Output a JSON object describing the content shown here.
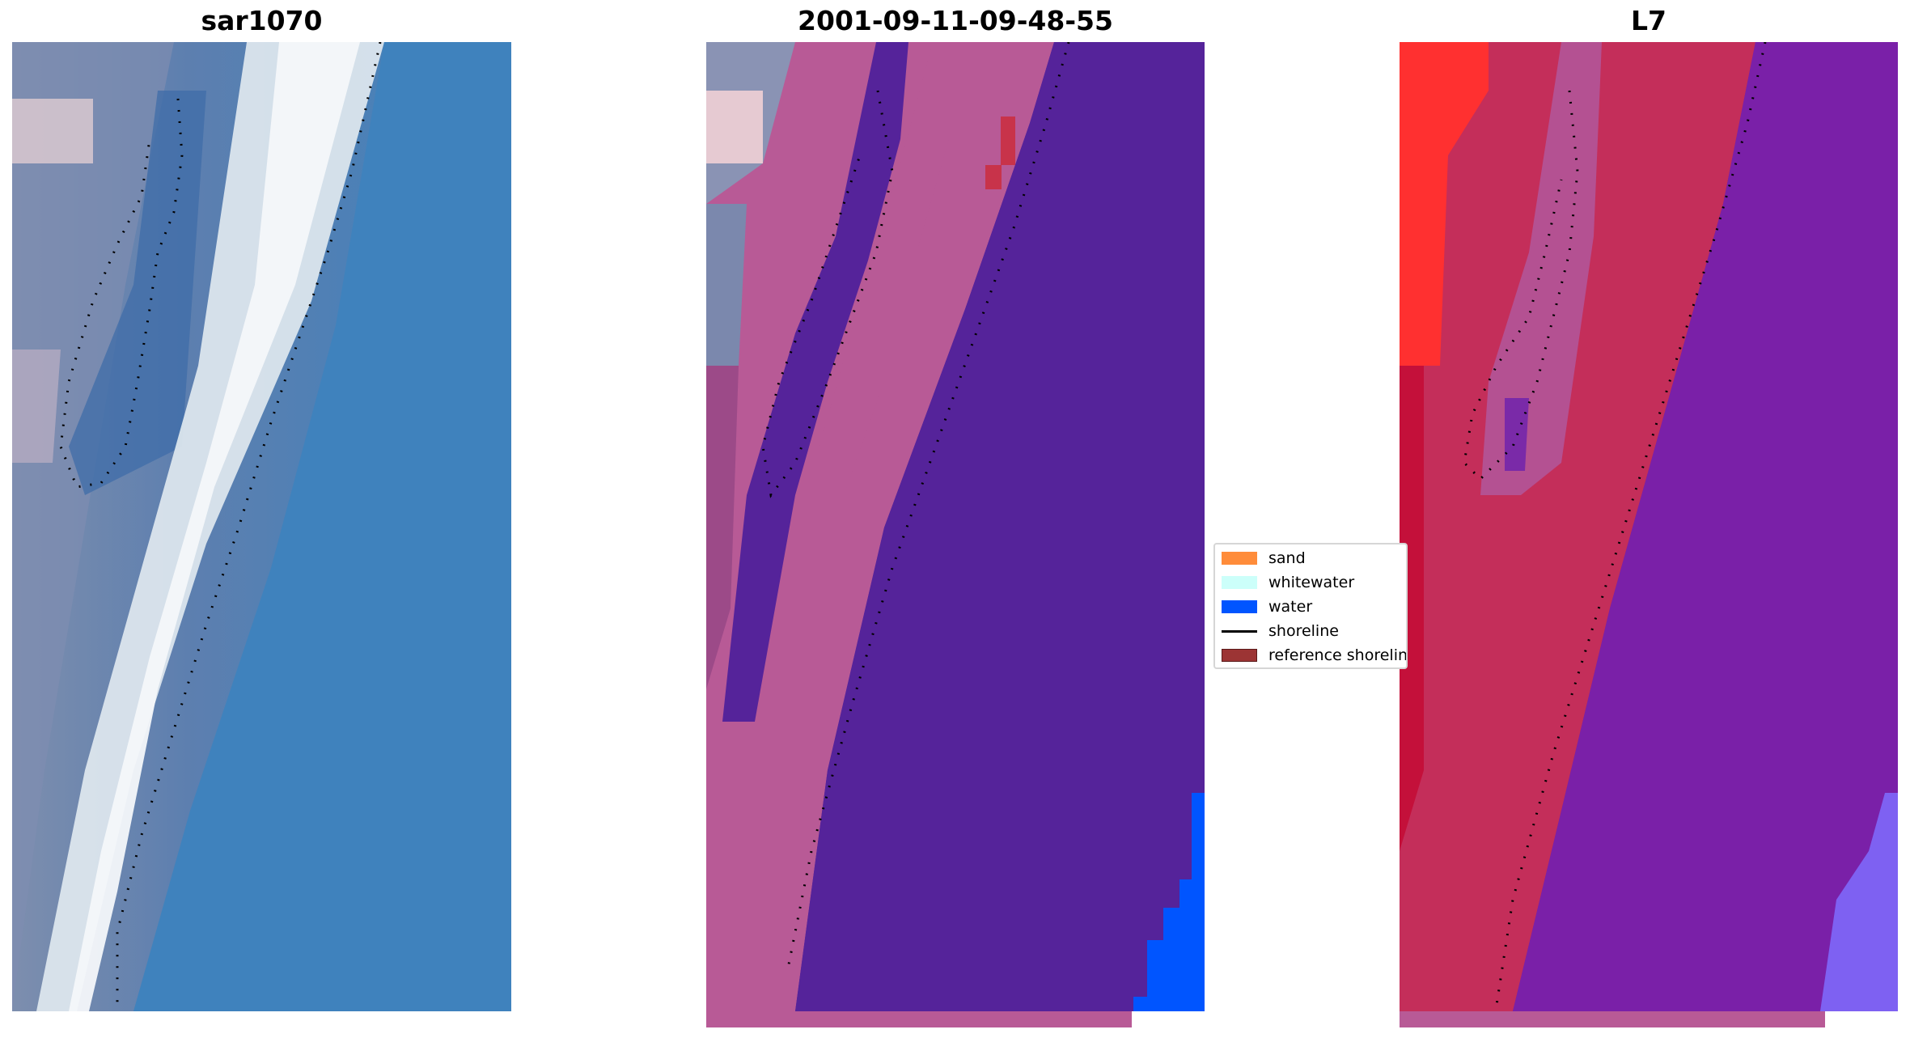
{
  "panels": [
    {
      "title": "sar1070"
    },
    {
      "title": "2001-09-11-09-48-55"
    },
    {
      "title": "L7"
    }
  ],
  "legend": {
    "items": [
      {
        "label": "sand",
        "color": "#ff8c3a"
      },
      {
        "label": "whitewater",
        "color": "#ccfffa"
      },
      {
        "label": "water",
        "color": "#0055ff"
      },
      {
        "label": "shoreline",
        "color": "#000000"
      },
      {
        "label": "reference shoreline",
        "color": "#9c3434"
      }
    ]
  }
}
